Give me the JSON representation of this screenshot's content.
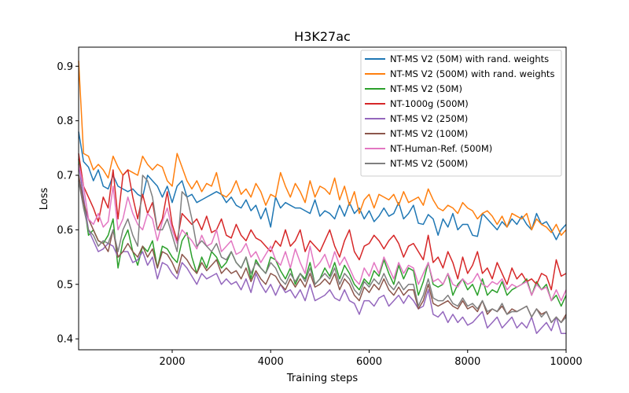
{
  "chart_data": {
    "type": "line",
    "title": "H3K27ac",
    "xlabel": "Training steps",
    "ylabel": "Loss",
    "xlim": [
      100,
      10000
    ],
    "ylim": [
      0.38,
      0.935
    ],
    "xticks": [
      2000,
      4000,
      6000,
      8000,
      10000
    ],
    "xtick_labels": [
      "2000",
      "4000",
      "6000",
      "8000",
      "10000"
    ],
    "yticks": [
      0.4,
      0.5,
      0.6,
      0.7,
      0.8,
      0.9
    ],
    "ytick_labels": [
      "0.4",
      "0.5",
      "0.6",
      "0.7",
      "0.8",
      "0.9"
    ],
    "legend_position": "top-right",
    "grid": false,
    "x": [
      100,
      200,
      300,
      400,
      500,
      600,
      700,
      800,
      900,
      1000,
      1100,
      1200,
      1300,
      1400,
      1500,
      1600,
      1700,
      1800,
      1900,
      2000,
      2100,
      2200,
      2300,
      2400,
      2500,
      2600,
      2700,
      2800,
      2900,
      3000,
      3100,
      3200,
      3300,
      3400,
      3500,
      3600,
      3700,
      3800,
      3900,
      4000,
      4100,
      4200,
      4300,
      4400,
      4500,
      4600,
      4700,
      4800,
      4900,
      5000,
      5100,
      5200,
      5300,
      5400,
      5500,
      5600,
      5700,
      5800,
      5900,
      6000,
      6100,
      6200,
      6300,
      6400,
      6500,
      6600,
      6700,
      6800,
      6900,
      7000,
      7100,
      7200,
      7300,
      7400,
      7500,
      7600,
      7700,
      7800,
      7900,
      8000,
      8100,
      8200,
      8300,
      8400,
      8500,
      8600,
      8700,
      8800,
      8900,
      9000,
      9100,
      9200,
      9300,
      9400,
      9500,
      9600,
      9700,
      9800,
      9900,
      10000
    ],
    "series": [
      {
        "name": "NT-MS V2 (50M) with rand. weights",
        "color": "#1f77b4",
        "values": [
          0.78,
          0.725,
          0.715,
          0.69,
          0.71,
          0.68,
          0.675,
          0.7,
          0.68,
          0.675,
          0.67,
          0.675,
          0.665,
          0.66,
          0.7,
          0.69,
          0.68,
          0.66,
          0.68,
          0.65,
          0.68,
          0.69,
          0.66,
          0.665,
          0.65,
          0.655,
          0.66,
          0.665,
          0.67,
          0.665,
          0.65,
          0.66,
          0.645,
          0.64,
          0.655,
          0.635,
          0.645,
          0.62,
          0.64,
          0.605,
          0.66,
          0.64,
          0.65,
          0.645,
          0.64,
          0.64,
          0.635,
          0.63,
          0.655,
          0.625,
          0.635,
          0.63,
          0.62,
          0.645,
          0.625,
          0.65,
          0.63,
          0.64,
          0.62,
          0.635,
          0.615,
          0.625,
          0.64,
          0.625,
          0.63,
          0.65,
          0.62,
          0.63,
          0.645,
          0.612,
          0.61,
          0.628,
          0.62,
          0.59,
          0.62,
          0.605,
          0.63,
          0.6,
          0.61,
          0.61,
          0.59,
          0.588,
          0.63,
          0.62,
          0.61,
          0.6,
          0.615,
          0.605,
          0.62,
          0.61,
          0.625,
          0.61,
          0.6,
          0.63,
          0.61,
          0.615,
          0.6,
          0.582,
          0.6,
          0.61
        ]
      },
      {
        "name": "NT-MS V2 (500M) with rand. weights",
        "color": "#ff7f0e",
        "values": [
          0.91,
          0.74,
          0.735,
          0.71,
          0.72,
          0.71,
          0.695,
          0.735,
          0.715,
          0.7,
          0.71,
          0.705,
          0.7,
          0.735,
          0.72,
          0.71,
          0.72,
          0.715,
          0.69,
          0.68,
          0.74,
          0.715,
          0.69,
          0.675,
          0.69,
          0.67,
          0.685,
          0.68,
          0.705,
          0.665,
          0.66,
          0.67,
          0.69,
          0.665,
          0.675,
          0.66,
          0.685,
          0.67,
          0.645,
          0.665,
          0.66,
          0.705,
          0.68,
          0.66,
          0.685,
          0.67,
          0.65,
          0.69,
          0.66,
          0.68,
          0.675,
          0.665,
          0.695,
          0.655,
          0.68,
          0.645,
          0.67,
          0.63,
          0.655,
          0.665,
          0.64,
          0.665,
          0.66,
          0.655,
          0.665,
          0.645,
          0.67,
          0.65,
          0.655,
          0.66,
          0.645,
          0.675,
          0.655,
          0.64,
          0.635,
          0.645,
          0.64,
          0.63,
          0.65,
          0.64,
          0.635,
          0.62,
          0.63,
          0.635,
          0.625,
          0.61,
          0.625,
          0.605,
          0.63,
          0.625,
          0.62,
          0.63,
          0.6,
          0.62,
          0.61,
          0.605,
          0.595,
          0.61,
          0.59,
          0.6
        ]
      },
      {
        "name": "NT-MS V2 (50M)",
        "color": "#2ca02c",
        "values": [
          0.73,
          0.655,
          0.59,
          0.6,
          0.58,
          0.575,
          0.59,
          0.62,
          0.53,
          0.58,
          0.6,
          0.56,
          0.535,
          0.57,
          0.56,
          0.58,
          0.53,
          0.57,
          0.565,
          0.55,
          0.54,
          0.58,
          0.595,
          0.55,
          0.52,
          0.55,
          0.53,
          0.56,
          0.55,
          0.53,
          0.54,
          0.56,
          0.54,
          0.53,
          0.55,
          0.51,
          0.545,
          0.53,
          0.52,
          0.55,
          0.545,
          0.525,
          0.51,
          0.53,
          0.5,
          0.52,
          0.51,
          0.54,
          0.5,
          0.51,
          0.53,
          0.515,
          0.54,
          0.51,
          0.535,
          0.52,
          0.5,
          0.49,
          0.51,
          0.5,
          0.525,
          0.515,
          0.545,
          0.52,
          0.5,
          0.535,
          0.51,
          0.53,
          0.525,
          0.48,
          0.505,
          0.54,
          0.5,
          0.495,
          0.5,
          0.52,
          0.48,
          0.5,
          0.51,
          0.49,
          0.5,
          0.48,
          0.51,
          0.48,
          0.49,
          0.485,
          0.505,
          0.48,
          0.49,
          0.495,
          0.5,
          0.51,
          0.48,
          0.505,
          0.49,
          0.5,
          0.47,
          0.48,
          0.46,
          0.48
        ]
      },
      {
        "name": "NT-1000g (500M)",
        "color": "#d62728",
        "values": [
          0.74,
          0.68,
          0.66,
          0.64,
          0.615,
          0.66,
          0.64,
          0.71,
          0.62,
          0.7,
          0.71,
          0.66,
          0.62,
          0.665,
          0.63,
          0.65,
          0.6,
          0.62,
          0.67,
          0.61,
          0.58,
          0.63,
          0.62,
          0.61,
          0.62,
          0.6,
          0.625,
          0.595,
          0.6,
          0.62,
          0.59,
          0.585,
          0.61,
          0.59,
          0.58,
          0.6,
          0.585,
          0.58,
          0.57,
          0.56,
          0.58,
          0.57,
          0.6,
          0.57,
          0.58,
          0.6,
          0.56,
          0.58,
          0.57,
          0.56,
          0.58,
          0.6,
          0.57,
          0.55,
          0.58,
          0.6,
          0.56,
          0.545,
          0.57,
          0.575,
          0.59,
          0.58,
          0.565,
          0.58,
          0.59,
          0.575,
          0.55,
          0.57,
          0.575,
          0.56,
          0.545,
          0.59,
          0.54,
          0.55,
          0.53,
          0.56,
          0.54,
          0.51,
          0.55,
          0.52,
          0.535,
          0.56,
          0.52,
          0.53,
          0.51,
          0.54,
          0.52,
          0.5,
          0.53,
          0.51,
          0.52,
          0.505,
          0.51,
          0.5,
          0.52,
          0.515,
          0.49,
          0.545,
          0.515,
          0.52
        ]
      },
      {
        "name": "NT-MS V2 (250M)",
        "color": "#9467bd",
        "values": [
          0.72,
          0.66,
          0.6,
          0.58,
          0.56,
          0.565,
          0.575,
          0.57,
          0.55,
          0.56,
          0.56,
          0.54,
          0.545,
          0.56,
          0.535,
          0.55,
          0.51,
          0.54,
          0.535,
          0.52,
          0.51,
          0.54,
          0.53,
          0.515,
          0.5,
          0.52,
          0.51,
          0.515,
          0.52,
          0.5,
          0.51,
          0.5,
          0.505,
          0.49,
          0.51,
          0.485,
          0.52,
          0.5,
          0.485,
          0.5,
          0.48,
          0.5,
          0.485,
          0.49,
          0.475,
          0.49,
          0.47,
          0.5,
          0.47,
          0.475,
          0.48,
          0.49,
          0.475,
          0.47,
          0.49,
          0.47,
          0.465,
          0.445,
          0.47,
          0.47,
          0.46,
          0.475,
          0.48,
          0.46,
          0.47,
          0.48,
          0.465,
          0.48,
          0.47,
          0.455,
          0.46,
          0.49,
          0.445,
          0.44,
          0.45,
          0.43,
          0.445,
          0.43,
          0.44,
          0.425,
          0.43,
          0.44,
          0.45,
          0.42,
          0.43,
          0.44,
          0.42,
          0.43,
          0.44,
          0.42,
          0.43,
          0.42,
          0.44,
          0.41,
          0.42,
          0.43,
          0.415,
          0.44,
          0.41,
          0.41
        ]
      },
      {
        "name": "NT-MS V2 (100M)",
        "color": "#8c564b",
        "values": [
          0.7,
          0.65,
          0.62,
          0.6,
          0.58,
          0.575,
          0.56,
          0.6,
          0.55,
          0.56,
          0.575,
          0.56,
          0.55,
          0.57,
          0.55,
          0.565,
          0.53,
          0.56,
          0.555,
          0.54,
          0.52,
          0.555,
          0.545,
          0.53,
          0.52,
          0.54,
          0.525,
          0.535,
          0.545,
          0.52,
          0.53,
          0.52,
          0.525,
          0.51,
          0.53,
          0.505,
          0.525,
          0.51,
          0.5,
          0.52,
          0.515,
          0.5,
          0.49,
          0.51,
          0.495,
          0.51,
          0.495,
          0.52,
          0.495,
          0.5,
          0.51,
          0.5,
          0.52,
          0.49,
          0.51,
          0.5,
          0.48,
          0.47,
          0.495,
          0.485,
          0.5,
          0.49,
          0.51,
          0.49,
          0.48,
          0.495,
          0.48,
          0.49,
          0.49,
          0.455,
          0.47,
          0.5,
          0.465,
          0.46,
          0.465,
          0.47,
          0.46,
          0.455,
          0.47,
          0.455,
          0.46,
          0.45,
          0.47,
          0.445,
          0.455,
          0.45,
          0.46,
          0.445,
          0.455,
          0.45,
          0.455,
          0.46,
          0.44,
          0.455,
          0.445,
          0.45,
          0.43,
          0.44,
          0.43,
          0.445
        ]
      },
      {
        "name": "NT-Human-Ref. (500M)",
        "color": "#e377c2",
        "values": [
          0.72,
          0.68,
          0.62,
          0.61,
          0.63,
          0.605,
          0.615,
          0.68,
          0.6,
          0.62,
          0.66,
          0.63,
          0.61,
          0.6,
          0.63,
          0.62,
          0.58,
          0.615,
          0.64,
          0.6,
          0.575,
          0.6,
          0.59,
          0.58,
          0.565,
          0.59,
          0.57,
          0.575,
          0.6,
          0.56,
          0.57,
          0.58,
          0.555,
          0.56,
          0.575,
          0.55,
          0.56,
          0.54,
          0.555,
          0.57,
          0.545,
          0.535,
          0.56,
          0.53,
          0.565,
          0.54,
          0.52,
          0.57,
          0.53,
          0.54,
          0.555,
          0.53,
          0.56,
          0.535,
          0.55,
          0.53,
          0.51,
          0.5,
          0.53,
          0.515,
          0.54,
          0.52,
          0.55,
          0.53,
          0.51,
          0.54,
          0.52,
          0.535,
          0.53,
          0.5,
          0.52,
          0.54,
          0.505,
          0.51,
          0.5,
          0.52,
          0.5,
          0.495,
          0.51,
          0.5,
          0.505,
          0.52,
          0.5,
          0.495,
          0.505,
          0.5,
          0.51,
          0.49,
          0.5,
          0.495,
          0.5,
          0.505,
          0.48,
          0.5,
          0.49,
          0.495,
          0.47,
          0.49,
          0.47,
          0.49
        ]
      },
      {
        "name": "NT-MS V2 (500M)",
        "color": "#7f7f7f",
        "values": [
          0.69,
          0.64,
          0.6,
          0.59,
          0.57,
          0.58,
          0.575,
          0.6,
          0.56,
          0.6,
          0.62,
          0.59,
          0.57,
          0.7,
          0.69,
          0.66,
          0.6,
          0.6,
          0.62,
          0.59,
          0.56,
          0.67,
          0.66,
          0.62,
          0.57,
          0.58,
          0.57,
          0.56,
          0.575,
          0.55,
          0.545,
          0.56,
          0.54,
          0.53,
          0.55,
          0.52,
          0.54,
          0.53,
          0.52,
          0.54,
          0.53,
          0.51,
          0.5,
          0.52,
          0.505,
          0.52,
          0.505,
          0.53,
          0.5,
          0.51,
          0.52,
          0.51,
          0.53,
          0.5,
          0.52,
          0.51,
          0.49,
          0.48,
          0.505,
          0.495,
          0.51,
          0.5,
          0.52,
          0.5,
          0.49,
          0.505,
          0.49,
          0.5,
          0.5,
          0.46,
          0.48,
          0.51,
          0.475,
          0.47,
          0.47,
          0.48,
          0.465,
          0.46,
          0.475,
          0.46,
          0.465,
          0.455,
          0.47,
          0.45,
          0.455,
          0.45,
          0.465,
          0.445,
          0.45,
          0.45,
          0.455,
          0.46,
          0.44,
          0.455,
          0.44,
          0.45,
          0.43,
          0.44,
          0.43,
          0.44
        ]
      }
    ]
  }
}
